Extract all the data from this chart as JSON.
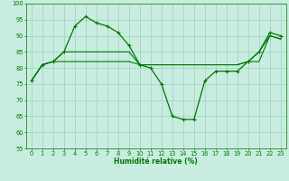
{
  "line1_x": [
    0,
    1,
    2,
    3,
    4,
    5,
    6,
    7,
    8,
    9,
    10,
    11,
    12,
    13,
    14,
    15,
    16,
    17,
    18,
    19,
    20,
    21,
    22,
    23
  ],
  "line1_y": [
    76,
    81,
    82,
    85,
    93,
    96,
    94,
    93,
    91,
    87,
    81,
    80,
    75,
    65,
    64,
    64,
    76,
    79,
    79,
    79,
    82,
    85,
    91,
    90
  ],
  "line2_x": [
    0,
    1,
    2,
    3,
    4,
    5,
    6,
    7,
    8,
    9,
    10,
    11,
    12,
    13,
    14,
    15,
    16,
    17,
    18,
    19,
    20,
    21,
    22,
    23
  ],
  "line2_y": [
    76,
    81,
    82,
    85,
    85,
    85,
    85,
    85,
    85,
    85,
    81,
    81,
    81,
    81,
    81,
    81,
    81,
    81,
    81,
    81,
    82,
    85,
    90,
    89
  ],
  "line3_x": [
    0,
    1,
    2,
    3,
    4,
    5,
    6,
    7,
    8,
    9,
    10,
    11,
    12,
    13,
    14,
    15,
    16,
    17,
    18,
    19,
    20,
    21,
    22,
    23
  ],
  "line3_y": [
    76,
    81,
    82,
    82,
    82,
    82,
    82,
    82,
    82,
    82,
    81,
    81,
    81,
    81,
    81,
    81,
    81,
    81,
    81,
    81,
    82,
    82,
    90,
    89
  ],
  "xlim": [
    -0.5,
    23.5
  ],
  "ylim": [
    55,
    100
  ],
  "yticks": [
    55,
    60,
    65,
    70,
    75,
    80,
    85,
    90,
    95,
    100
  ],
  "xticks": [
    0,
    1,
    2,
    3,
    4,
    5,
    6,
    7,
    8,
    9,
    10,
    11,
    12,
    13,
    14,
    15,
    16,
    17,
    18,
    19,
    20,
    21,
    22,
    23
  ],
  "xlabel": "Humidité relative (%)",
  "line_color": "#007700",
  "marker": "+",
  "bg_color": "#c8ede0",
  "grid_color": "#9ecfbe",
  "label_fontsize": 5.5,
  "tick_fontsize": 4.8
}
